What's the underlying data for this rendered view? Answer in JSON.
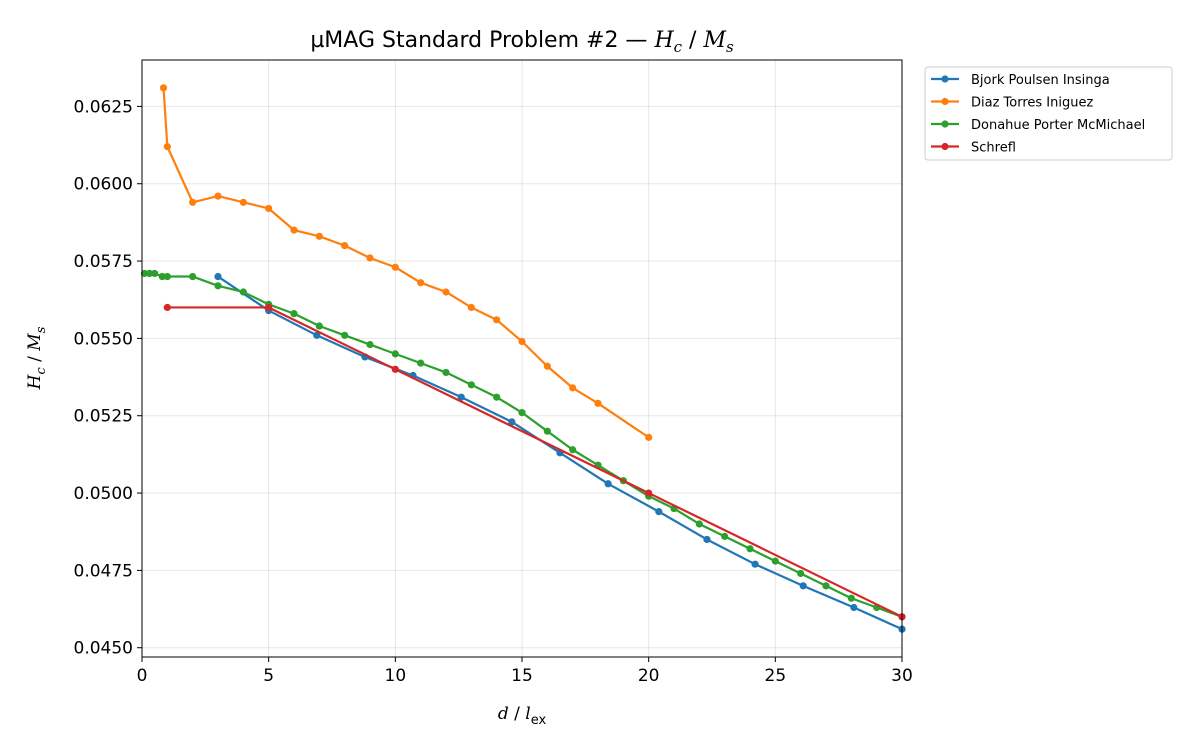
{
  "chart_data": {
    "type": "line",
    "title": "µMAG Standard Problem #2 — H_c / M_s",
    "xlabel": "d / l_ex",
    "ylabel": "H_c / M_s",
    "xlim": [
      0,
      30
    ],
    "ylim": [
      0.0447,
      0.064
    ],
    "xticks": [
      0,
      5,
      10,
      15,
      20,
      25,
      30
    ],
    "yticks": [
      0.045,
      0.0475,
      0.05,
      0.0525,
      0.055,
      0.0575,
      0.06,
      0.0625
    ],
    "xtick_labels": [
      "0",
      "5",
      "10",
      "15",
      "20",
      "25",
      "30"
    ],
    "ytick_labels": [
      "0.0450",
      "0.0475",
      "0.0500",
      "0.0525",
      "0.0550",
      "0.0575",
      "0.0600",
      "0.0625"
    ],
    "grid": true,
    "legend_position": "outside-top-right",
    "series": [
      {
        "name": "Bjork Poulsen Insinga",
        "color": "#1f77b4",
        "x": [
          3.0,
          5.0,
          6.9,
          8.8,
          10.7,
          12.6,
          14.6,
          16.5,
          18.4,
          20.4,
          22.3,
          24.2,
          26.1,
          28.1,
          30.0
        ],
        "y": [
          0.057,
          0.0559,
          0.0551,
          0.0544,
          0.0538,
          0.0531,
          0.0523,
          0.0513,
          0.0503,
          0.0494,
          0.0485,
          0.0477,
          0.047,
          0.0463,
          0.0456
        ]
      },
      {
        "name": "Diaz Torres Iniguez",
        "color": "#ff7f0e",
        "x": [
          0.85,
          1.0,
          2.0,
          3.0,
          4.0,
          5.0,
          6.0,
          7.0,
          8.0,
          9.0,
          10.0,
          11.0,
          12.0,
          13.0,
          14.0,
          15.0,
          16.0,
          17.0,
          18.0,
          20.0
        ],
        "y": [
          0.0631,
          0.0612,
          0.0594,
          0.0596,
          0.0594,
          0.0592,
          0.0585,
          0.0583,
          0.058,
          0.0576,
          0.0573,
          0.0568,
          0.0565,
          0.056,
          0.0556,
          0.0549,
          0.0541,
          0.0534,
          0.0529,
          0.0518
        ]
      },
      {
        "name": "Donahue Porter McMichael",
        "color": "#2ca02c",
        "x": [
          0.1,
          0.3,
          0.5,
          0.8,
          1.0,
          2.0,
          3.0,
          4.0,
          5.0,
          6.0,
          7.0,
          8.0,
          9.0,
          10.0,
          11.0,
          12.0,
          13.0,
          14.0,
          15.0,
          16.0,
          17.0,
          18.0,
          19.0,
          20.0,
          21.0,
          22.0,
          23.0,
          24.0,
          25.0,
          26.0,
          27.0,
          28.0,
          29.0,
          30.0
        ],
        "y": [
          0.0571,
          0.0571,
          0.0571,
          0.057,
          0.057,
          0.057,
          0.0567,
          0.0565,
          0.0561,
          0.0558,
          0.0554,
          0.0551,
          0.0548,
          0.0545,
          0.0542,
          0.0539,
          0.0535,
          0.0531,
          0.0526,
          0.052,
          0.0514,
          0.0509,
          0.0504,
          0.0499,
          0.0495,
          0.049,
          0.0486,
          0.0482,
          0.0478,
          0.0474,
          0.047,
          0.0466,
          0.0463,
          0.046
        ]
      },
      {
        "name": "Schrefl",
        "color": "#d62728",
        "x": [
          1.0,
          5.0,
          10.0,
          20.0,
          30.0
        ],
        "y": [
          0.056,
          0.056,
          0.054,
          0.05,
          0.046
        ]
      }
    ]
  }
}
